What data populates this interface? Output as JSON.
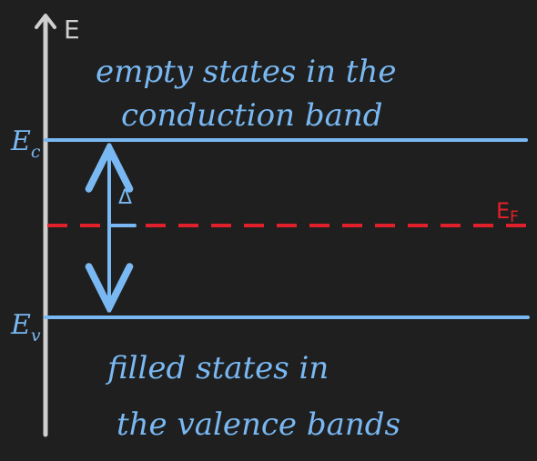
{
  "colors": {
    "background": "#1f1f1f",
    "axis": "#cfcfcf",
    "band": "#79b8f2",
    "fermi": "#e0202a"
  },
  "axis": {
    "label": "E"
  },
  "levels": {
    "conduction": {
      "label": "E",
      "subscript": "c"
    },
    "valence": {
      "label": "E",
      "subscript": "v"
    },
    "fermi": {
      "label": "E",
      "subscript": "F"
    },
    "gap": {
      "label": "Δ"
    }
  },
  "captions": {
    "conduction_line1": "empty states in the",
    "conduction_line2": "conduction band",
    "valence_line1": "filled states in",
    "valence_line2": "the valence bands"
  }
}
